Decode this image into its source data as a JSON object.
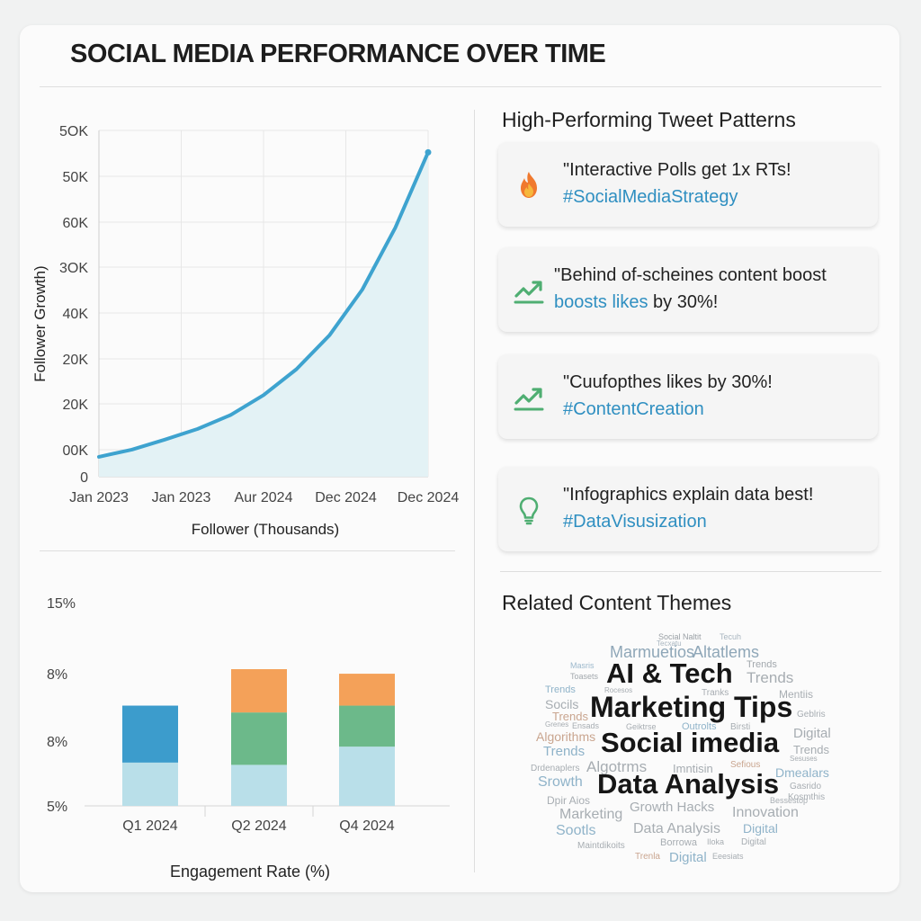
{
  "title": "SOCIAL MEDIA PERFORMANCE OVER TIME",
  "chart_data": [
    {
      "type": "area",
      "xlabel": "Follower (Thousands)",
      "ylabel": "Follower Growth)",
      "x_tick_labels": [
        "Jan 2023",
        "Jan 2023",
        "Aur 2024",
        "Dec 2024",
        "Dec 2024"
      ],
      "y_tick_labels": [
        "0",
        "00K",
        "20K",
        "20K",
        "40K",
        "3OK",
        "60K",
        "50K",
        "5OK"
      ],
      "x": [
        0,
        0.1,
        0.2,
        0.3,
        0.4,
        0.5,
        0.6,
        0.7,
        0.8,
        0.9,
        1.0
      ],
      "y": [
        0.5,
        0.68,
        0.93,
        1.2,
        1.55,
        2.05,
        2.7,
        3.55,
        4.7,
        6.25,
        8.15
      ],
      "ylim": [
        0,
        8.7
      ],
      "grid": true,
      "color": "#3ea3cf"
    },
    {
      "type": "bar",
      "stacked": true,
      "xlabel": "Engagement Rate (%)",
      "categories": [
        "Q1 2024",
        "Q2 2024",
        "Q4 2024"
      ],
      "y_tick_labels": [
        "5%",
        "8%",
        "8%",
        "15%"
      ],
      "series": [
        {
          "values": [
            1.9,
            1.8,
            2.6
          ],
          "color": "#b9dfe9"
        },
        {
          "values": [
            0,
            2.3,
            1.8
          ],
          "color": "#6cb98a"
        },
        {
          "values": [
            2.5,
            0,
            0
          ],
          "color": "#3c9ccc"
        },
        {
          "values": [
            0,
            1.9,
            1.4
          ],
          "color": "#f4a159"
        }
      ],
      "ylim": [
        0,
        9.0
      ]
    }
  ],
  "patterns": {
    "heading": "High-Performing Tweet Patterns",
    "cards": [
      {
        "icon": "fire-icon",
        "line1": "\"Interactive Polls get 1x RTs!",
        "line2": "#SocialMediaStrategy"
      },
      {
        "icon": "trend-up-icon",
        "line1": "\"Behind of-scheines content boost",
        "line2_link": "boosts likes",
        "line2_rest": " by 30%!"
      },
      {
        "icon": "trend-up-icon",
        "line1": "\"Cuufopthes likes by 30%!",
        "line2": "#ContentCreation"
      },
      {
        "icon": "lightbulb-icon",
        "line1": "\"Infographics explain data best!",
        "line2": "#DataVisusization"
      }
    ]
  },
  "themes": {
    "heading": "Related Content Themes",
    "words": [
      {
        "t": "Social Naltit",
        "c": "#9aa0a5"
      },
      {
        "t": "Tecuh",
        "c": "#a9b6c0"
      },
      {
        "t": "Tecxatu",
        "c": "#a9b6c0"
      },
      {
        "t": "Marmuetios",
        "c": "#8fa7b8"
      },
      {
        "t": "Altatlems",
        "c": "#8fa7b8"
      },
      {
        "t": "Masris",
        "c": "#9cb8cc"
      },
      {
        "t": "Trends",
        "c": "#a2a8ad"
      },
      {
        "t": "Toasets",
        "c": "#a2a8ad"
      },
      {
        "t": "AI & Tech",
        "c": "#161616"
      },
      {
        "t": "Trends",
        "c": "#a7adb2"
      },
      {
        "t": "Trends",
        "c": "#8fb3c9"
      },
      {
        "t": "Rocesos",
        "c": "#a7adb2"
      },
      {
        "t": "Tranks",
        "c": "#a7adb2"
      },
      {
        "t": "Mentiis",
        "c": "#a7adb2"
      },
      {
        "t": "Socils",
        "c": "#a7adb2"
      },
      {
        "t": "Marketing Tips",
        "c": "#161616"
      },
      {
        "t": "Trends",
        "c": "#c9a58f"
      },
      {
        "t": "Geblris",
        "c": "#a7adb2"
      },
      {
        "t": "Grenes",
        "c": "#a7adb2"
      },
      {
        "t": "Ensads",
        "c": "#a7adb2"
      },
      {
        "t": "Geiktrse",
        "c": "#a7adb2"
      },
      {
        "t": "Outrolts",
        "c": "#8fb3c9"
      },
      {
        "t": "Birsti",
        "c": "#a7adb2"
      },
      {
        "t": "Digital",
        "c": "#a7adb2"
      },
      {
        "t": "Algorithms",
        "c": "#c9a58f"
      },
      {
        "t": "Social imedia",
        "c": "#161616"
      },
      {
        "t": "Trends",
        "c": "#8fb3c9"
      },
      {
        "t": "Trends",
        "c": "#a7adb2"
      },
      {
        "t": "Sesuses",
        "c": "#a7adb2"
      },
      {
        "t": "Drdenaplers",
        "c": "#a7adb2"
      },
      {
        "t": "Algotrms",
        "c": "#a7adb2"
      },
      {
        "t": "Imntisin",
        "c": "#a7adb2"
      },
      {
        "t": "Sefious",
        "c": "#c9a58f"
      },
      {
        "t": "Dmealars",
        "c": "#8fb3c9"
      },
      {
        "t": "Srowth",
        "c": "#8fb3c9"
      },
      {
        "t": "Data Analysis",
        "c": "#161616"
      },
      {
        "t": "Gasrido",
        "c": "#a7adb2"
      },
      {
        "t": "Dpir Aios",
        "c": "#a7adb2"
      },
      {
        "t": "Bessestop",
        "c": "#a7adb2"
      },
      {
        "t": "Kosmthis",
        "c": "#a7adb2"
      },
      {
        "t": "Growth Hacks",
        "c": "#a7adb2"
      },
      {
        "t": "Marketing",
        "c": "#a7adb2"
      },
      {
        "t": "Innovation",
        "c": "#a7adb2"
      },
      {
        "t": "Sootls",
        "c": "#8fb3c9"
      },
      {
        "t": "Data Analysis",
        "c": "#a7adb2"
      },
      {
        "t": "Digital",
        "c": "#8fb3c9"
      },
      {
        "t": "Maintdikoits",
        "c": "#a7adb2"
      },
      {
        "t": "Borrowa",
        "c": "#a7adb2"
      },
      {
        "t": "Iloka",
        "c": "#a7adb2"
      },
      {
        "t": "Digital",
        "c": "#a7adb2"
      },
      {
        "t": "Trenla",
        "c": "#c9a58f"
      },
      {
        "t": "Digital",
        "c": "#8fb3c9"
      },
      {
        "t": "Eeesiats",
        "c": "#a7adb2"
      }
    ]
  }
}
